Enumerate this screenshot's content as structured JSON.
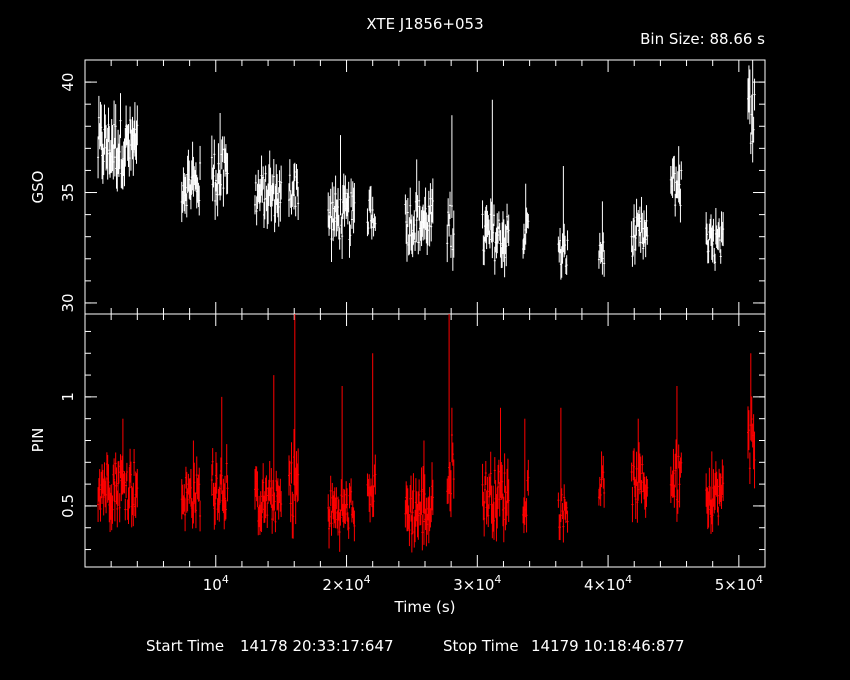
{
  "chart_data": [
    {
      "type": "line",
      "panel": "top",
      "title": "XTE J1856+053",
      "annotation": "Bin Size: 88.66 s",
      "ylabel": "GSO",
      "xlim": [
        0,
        52000
      ],
      "ylim": [
        29.5,
        41
      ],
      "yticks": [
        {
          "v": 30,
          "label": "30"
        },
        {
          "v": 35,
          "label": "35"
        },
        {
          "v": 40,
          "label": "40"
        }
      ],
      "color": "#ffffff",
      "segments": [
        {
          "t0": 1000,
          "t1": 4000,
          "base": 37.1,
          "amp": 1.3,
          "spike": 39.5
        },
        {
          "t0": 7400,
          "t1": 8800,
          "base": 35.4,
          "amp": 1.0,
          "spike": 37.3
        },
        {
          "t0": 9700,
          "t1": 10900,
          "base": 35.8,
          "amp": 1.2,
          "spike": 38.6
        },
        {
          "t0": 13000,
          "t1": 15000,
          "base": 34.9,
          "amp": 1.0,
          "spike": 36.9
        },
        {
          "t0": 15600,
          "t1": 16300,
          "base": 35.2,
          "amp": 0.9,
          "spike": 36.3
        },
        {
          "t0": 18600,
          "t1": 20600,
          "base": 33.9,
          "amp": 1.1,
          "spike": 37.6
        },
        {
          "t0": 21600,
          "t1": 22200,
          "base": 34.1,
          "amp": 0.8,
          "spike": 35.3
        },
        {
          "t0": 24500,
          "t1": 26600,
          "base": 33.7,
          "amp": 1.1,
          "spike": 36.5
        },
        {
          "t0": 27700,
          "t1": 28200,
          "base": 33.6,
          "amp": 1.2,
          "spike": 38.5
        },
        {
          "t0": 30400,
          "t1": 32400,
          "base": 33.0,
          "amp": 1.1,
          "spike": 39.2
        },
        {
          "t0": 33500,
          "t1": 33900,
          "base": 33.2,
          "amp": 0.8,
          "spike": 35.4
        },
        {
          "t0": 36200,
          "t1": 36900,
          "base": 32.2,
          "amp": 0.8,
          "spike": 36.2
        },
        {
          "t0": 39300,
          "t1": 39700,
          "base": 32.4,
          "amp": 0.8,
          "spike": 34.6
        },
        {
          "t0": 41800,
          "t1": 43000,
          "base": 33.0,
          "amp": 0.9,
          "spike": 34.8
        },
        {
          "t0": 44800,
          "t1": 45600,
          "base": 35.3,
          "amp": 1.0,
          "spike": 37.1
        },
        {
          "t0": 47500,
          "t1": 48800,
          "base": 32.6,
          "amp": 0.9,
          "spike": 34.3
        },
        {
          "t0": 50700,
          "t1": 51200,
          "base": 38.6,
          "amp": 1.4,
          "spike": 41.0
        }
      ]
    },
    {
      "type": "line",
      "panel": "bottom",
      "ylabel": "PIN",
      "xlabel": "Time (s)",
      "xlim": [
        0,
        52000
      ],
      "ylim": [
        0.22,
        1.38
      ],
      "yticks": [
        {
          "v": 0.5,
          "label": "0.5"
        },
        {
          "v": 1,
          "label": "1"
        }
      ],
      "xticks": [
        {
          "v": 10000,
          "mant": "10",
          "exp": "4"
        },
        {
          "v": 20000,
          "mant": "2×10",
          "exp": "4"
        },
        {
          "v": 30000,
          "mant": "3×10",
          "exp": "4"
        },
        {
          "v": 40000,
          "mant": "4×10",
          "exp": "4"
        },
        {
          "v": 50000,
          "mant": "5×10",
          "exp": "4"
        }
      ],
      "color": "#ff0000",
      "segments": [
        {
          "t0": 1000,
          "t1": 4000,
          "base": 0.6,
          "amp": 0.12,
          "spike": 0.9
        },
        {
          "t0": 7400,
          "t1": 8800,
          "base": 0.55,
          "amp": 0.1,
          "spike": 0.8
        },
        {
          "t0": 9700,
          "t1": 10900,
          "base": 0.6,
          "amp": 0.12,
          "spike": 1.0
        },
        {
          "t0": 13000,
          "t1": 15000,
          "base": 0.52,
          "amp": 0.1,
          "spike": 1.1
        },
        {
          "t0": 15600,
          "t1": 16300,
          "base": 0.6,
          "amp": 0.15,
          "spike": 1.38
        },
        {
          "t0": 18600,
          "t1": 20600,
          "base": 0.48,
          "amp": 0.1,
          "spike": 1.05
        },
        {
          "t0": 21600,
          "t1": 22200,
          "base": 0.55,
          "amp": 0.1,
          "spike": 1.2
        },
        {
          "t0": 24500,
          "t1": 26600,
          "base": 0.48,
          "amp": 0.12,
          "spike": 0.8
        },
        {
          "t0": 27700,
          "t1": 28200,
          "base": 0.7,
          "amp": 0.15,
          "spike": 1.38
        },
        {
          "t0": 30400,
          "t1": 32400,
          "base": 0.55,
          "amp": 0.12,
          "spike": 0.95
        },
        {
          "t0": 33500,
          "t1": 33900,
          "base": 0.55,
          "amp": 0.1,
          "spike": 0.9
        },
        {
          "t0": 36200,
          "t1": 36900,
          "base": 0.48,
          "amp": 0.08,
          "spike": 0.95
        },
        {
          "t0": 39300,
          "t1": 39700,
          "base": 0.6,
          "amp": 0.08,
          "spike": 0.75
        },
        {
          "t0": 41800,
          "t1": 43000,
          "base": 0.6,
          "amp": 0.1,
          "spike": 0.9
        },
        {
          "t0": 44800,
          "t1": 45600,
          "base": 0.62,
          "amp": 0.12,
          "spike": 1.05
        },
        {
          "t0": 47500,
          "t1": 48800,
          "base": 0.55,
          "amp": 0.1,
          "spike": 0.75
        },
        {
          "t0": 50700,
          "t1": 51200,
          "base": 0.75,
          "amp": 0.15,
          "spike": 1.2
        }
      ]
    }
  ],
  "footer": {
    "start_label": "Start Time",
    "start_value": "14178 20:33:17:647",
    "stop_label": "Stop Time",
    "stop_value": "14179 10:18:46:877"
  }
}
